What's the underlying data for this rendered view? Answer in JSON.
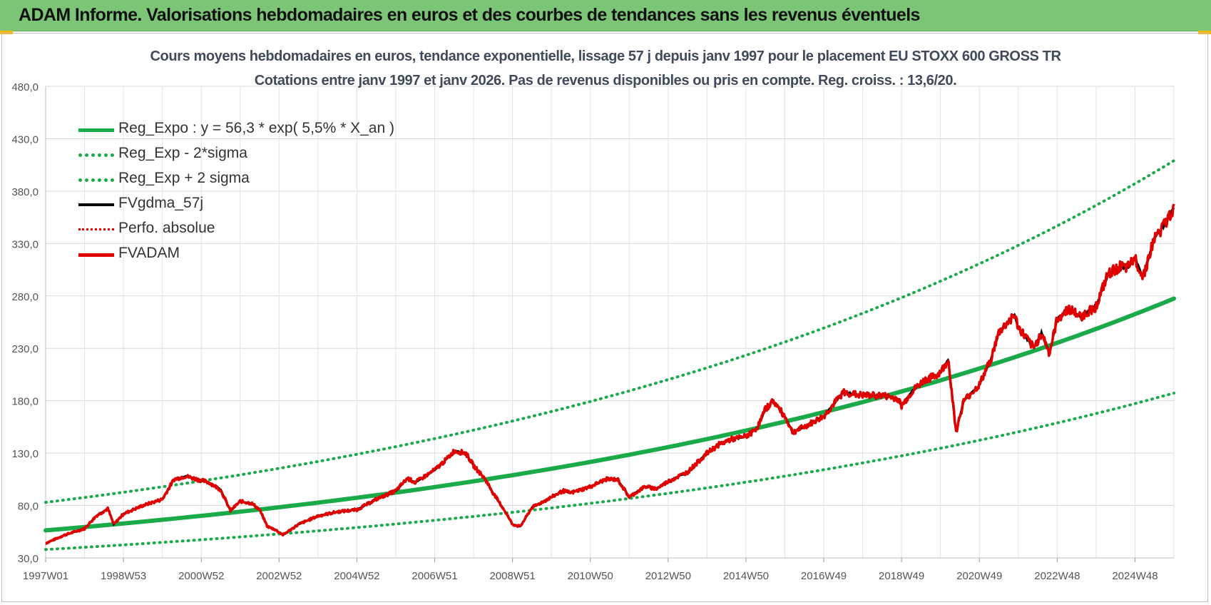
{
  "header": {
    "title": "ADAM Informe. Valorisations hebdomadaires en euros et des courbes de tendances sans les revenus éventuels"
  },
  "chart_data": {
    "type": "line",
    "title": "Cours moyens hebdomadaires en euros, tendance exponentielle, lissage 57 j depuis janv 1997  pour le placement EU STOXX 600 GROSS TR",
    "subtitle": "Cotations entre janv 1997 et janv 2026. Pas de revenus disponibles ou pris en compte. Reg. croiss. : 13,6/20.",
    "xlabel": "",
    "ylabel": "",
    "ylim": [
      30,
      480
    ],
    "yticks": [
      "30,0",
      "80,0",
      "130,0",
      "180,0",
      "230,0",
      "280,0",
      "330,0",
      "380,0",
      "430,0",
      "480,0"
    ],
    "xticks": [
      {
        "label": "1997W01",
        "year": 1997.0
      },
      {
        "label": "1998W53",
        "year": 1999.0
      },
      {
        "label": "2000W52",
        "year": 2001.0
      },
      {
        "label": "2002W52",
        "year": 2003.0
      },
      {
        "label": "2004W52",
        "year": 2005.0
      },
      {
        "label": "2006W51",
        "year": 2007.0
      },
      {
        "label": "2008W51",
        "year": 2009.0
      },
      {
        "label": "2010W50",
        "year": 2011.0
      },
      {
        "label": "2012W50",
        "year": 2013.0
      },
      {
        "label": "2014W50",
        "year": 2015.0
      },
      {
        "label": "2016W49",
        "year": 2017.0
      },
      {
        "label": "2018W49",
        "year": 2019.0
      },
      {
        "label": "2020W49",
        "year": 2021.0
      },
      {
        "label": "2022W48",
        "year": 2023.0
      },
      {
        "label": "2024W48",
        "year": 2025.0
      }
    ],
    "xlim": [
      1997.0,
      2026.0
    ],
    "grid": true,
    "legend_position": "top-left",
    "series": [
      {
        "name": "Reg_Expo : y = 56,3 * exp( 5,5% *  X_an )",
        "color": "#1aaa4a",
        "style": "solid",
        "regression": {
          "a": 56.3,
          "rate": 0.055
        }
      },
      {
        "name": "Reg_Exp - 2*sigma",
        "color": "#1aaa4a",
        "style": "dotted",
        "regression": {
          "a": 38.0,
          "rate": 0.055
        }
      },
      {
        "name": "Reg_Exp + 2 sigma",
        "color": "#1aaa4a",
        "style": "dotted",
        "regression": {
          "a": 83.0,
          "rate": 0.055
        }
      },
      {
        "name": "FVgdma_57j",
        "color": "#000000",
        "style": "solid",
        "smoothed": true
      },
      {
        "name": "Perfo. absolue",
        "color": "#e00000",
        "style": "dotted"
      },
      {
        "name": "FVADAM",
        "color": "#e00000",
        "style": "solid",
        "x": [
          1997.0,
          1997.5,
          1998.0,
          1998.3,
          1998.6,
          1998.75,
          1999.0,
          1999.5,
          2000.0,
          2000.3,
          2000.6,
          2000.8,
          2001.0,
          2001.2,
          2001.5,
          2001.75,
          2002.0,
          2002.3,
          2002.5,
          2002.7,
          2002.9,
          2003.1,
          2003.3,
          2003.5,
          2004.0,
          2004.5,
          2005.0,
          2005.5,
          2006.0,
          2006.3,
          2006.5,
          2007.0,
          2007.3,
          2007.5,
          2007.8,
          2008.0,
          2008.3,
          2008.5,
          2008.8,
          2009.0,
          2009.2,
          2009.5,
          2010.0,
          2010.3,
          2010.5,
          2011.0,
          2011.4,
          2011.7,
          2012.0,
          2012.4,
          2012.7,
          2013.0,
          2013.5,
          2014.0,
          2014.3,
          2014.6,
          2014.9,
          2015.1,
          2015.3,
          2015.5,
          2015.7,
          2016.0,
          2016.2,
          2016.5,
          2017.0,
          2017.5,
          2018.0,
          2018.5,
          2018.9,
          2019.0,
          2019.3,
          2019.6,
          2019.9,
          2020.1,
          2020.2,
          2020.4,
          2020.6,
          2021.0,
          2021.3,
          2021.5,
          2021.9,
          2022.0,
          2022.2,
          2022.4,
          2022.6,
          2022.8,
          2023.0,
          2023.3,
          2023.6,
          2024.0,
          2024.3,
          2024.6,
          2024.8,
          2025.0,
          2025.2,
          2025.5,
          2025.8,
          2026.0
        ],
        "values": [
          44,
          52,
          58,
          70,
          77,
          62,
          72,
          80,
          86,
          105,
          108,
          106,
          104,
          102,
          95,
          75,
          84,
          82,
          76,
          60,
          57,
          52,
          57,
          62,
          70,
          74,
          76,
          86,
          94,
          106,
          102,
          114,
          124,
          132,
          130,
          118,
          105,
          92,
          75,
          62,
          60,
          78,
          88,
          94,
          92,
          98,
          105,
          105,
          88,
          98,
          96,
          103,
          112,
          130,
          138,
          143,
          145,
          148,
          155,
          172,
          180,
          165,
          150,
          155,
          165,
          188,
          185,
          185,
          182,
          175,
          190,
          200,
          204,
          212,
          220,
          150,
          180,
          195,
          220,
          245,
          262,
          250,
          240,
          230,
          245,
          225,
          258,
          268,
          260,
          270,
          300,
          308,
          306,
          316,
          298,
          335,
          350,
          365
        ]
      }
    ]
  }
}
